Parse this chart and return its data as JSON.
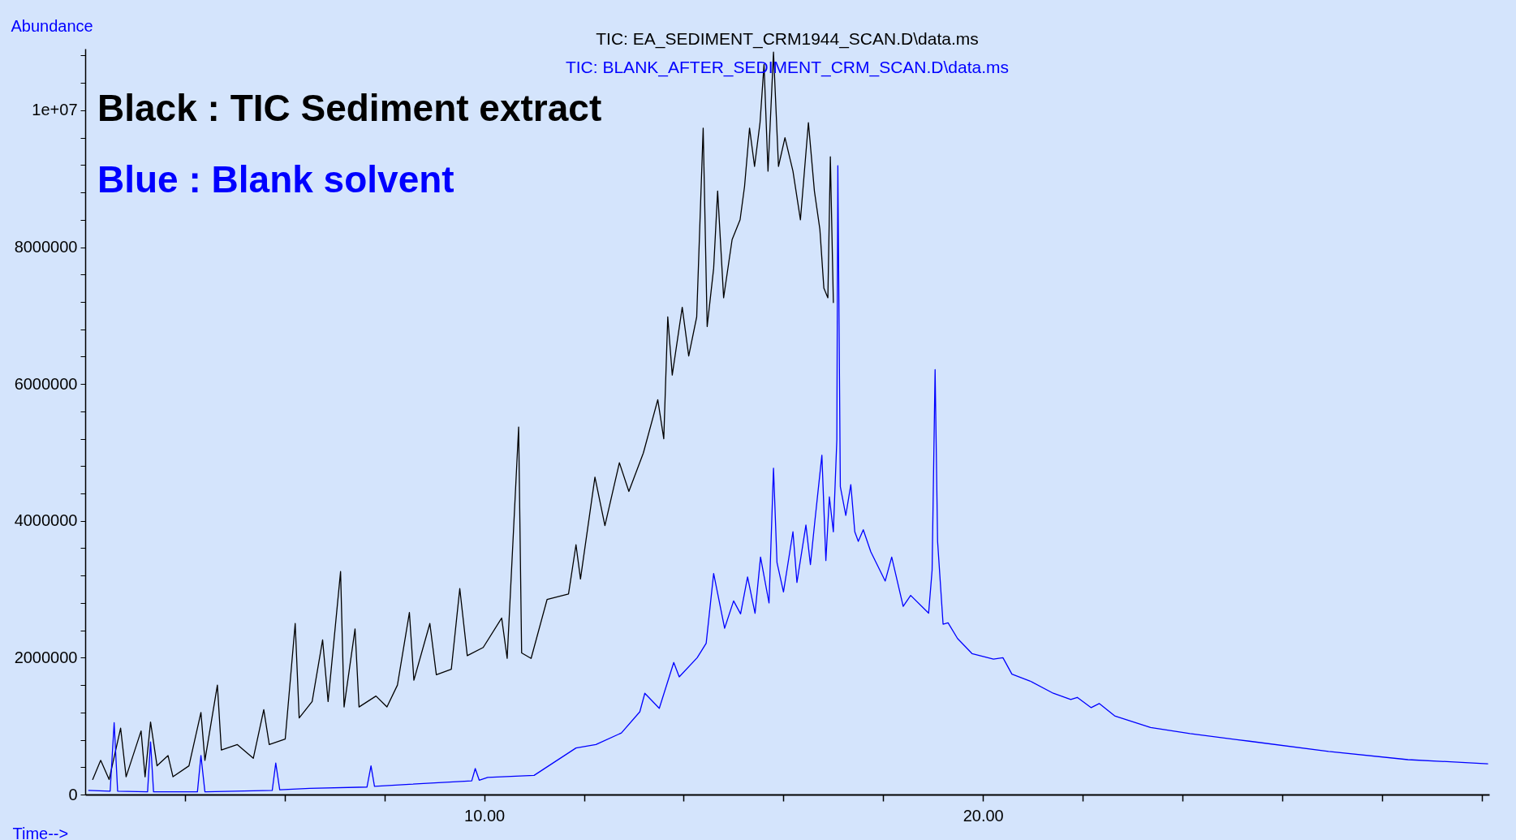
{
  "chart_data": {
    "type": "line",
    "title": "TIC: EA_SEDIMENT_CRM1944_SCAN.D\\data.ms",
    "subtitle": "TIC: BLANK_AFTER_SEDIMENT_CRM_SCAN.D\\data.ms",
    "xlabel": "Time-->",
    "ylabel": "Abundance",
    "legend": "top left",
    "grid": false,
    "xlim": [
      2.0,
      30.15
    ],
    "ylim": [
      0,
      10900000
    ],
    "xticks": [
      {
        "value": 4,
        "label": null
      },
      {
        "value": 6,
        "label": null
      },
      {
        "value": 8,
        "label": null
      },
      {
        "value": 10,
        "label": "10.00"
      },
      {
        "value": 12,
        "label": null
      },
      {
        "value": 14,
        "label": null
      },
      {
        "value": 16,
        "label": null
      },
      {
        "value": 18,
        "label": null
      },
      {
        "value": 20,
        "label": "20.00"
      },
      {
        "value": 22,
        "label": null
      },
      {
        "value": 24,
        "label": null
      },
      {
        "value": 26,
        "label": null
      },
      {
        "value": 28,
        "label": null
      },
      {
        "value": 30,
        "label": null
      }
    ],
    "yticks": [
      0,
      {
        "value": 400000,
        "label": null
      },
      {
        "value": 800000,
        "label": null
      },
      {
        "value": 1200000,
        "label": null
      },
      {
        "value": 1600000,
        "label": null
      },
      2000000,
      {
        "value": 2400000,
        "label": null
      },
      {
        "value": 2800000,
        "label": null
      },
      {
        "value": 3200000,
        "label": null
      },
      {
        "value": 3600000,
        "label": null
      },
      4000000,
      {
        "value": 4400000,
        "label": null
      },
      {
        "value": 4800000,
        "label": null
      },
      {
        "value": 5200000,
        "label": null
      },
      {
        "value": 5600000,
        "label": null
      },
      6000000,
      {
        "value": 6400000,
        "label": null
      },
      {
        "value": 6800000,
        "label": null
      },
      {
        "value": 7200000,
        "label": null
      },
      {
        "value": 7600000,
        "label": null
      },
      8000000,
      {
        "value": 8400000,
        "label": null
      },
      {
        "value": 8800000,
        "label": null
      },
      {
        "value": 9200000,
        "label": null
      },
      {
        "value": 9600000,
        "label": null
      },
      {
        "value": 10000000,
        "label": "1e+07"
      },
      {
        "value": 10400000,
        "label": null
      },
      {
        "value": 10800000,
        "label": null
      }
    ],
    "series": [
      {
        "name": "Black : TIC Sediment extract",
        "color": "#000000",
        "x": [
          2.15,
          2.31,
          2.48,
          2.71,
          2.82,
          3.12,
          3.2,
          3.31,
          3.44,
          3.66,
          3.76,
          4.08,
          4.32,
          4.4,
          4.65,
          4.73,
          5.05,
          5.37,
          5.58,
          5.69,
          6.01,
          6.21,
          6.29,
          6.55,
          6.76,
          6.87,
          7.12,
          7.19,
          7.41,
          7.49,
          7.83,
          8.05,
          8.26,
          8.5,
          8.59,
          8.91,
          9.04,
          9.34,
          9.51,
          9.66,
          9.98,
          10.35,
          10.46,
          10.69,
          10.75,
          10.94,
          11.26,
          11.69,
          11.84,
          11.93,
          12.22,
          12.42,
          12.71,
          12.9,
          13.19,
          13.48,
          13.6,
          13.68,
          13.77,
          13.97,
          14.1,
          14.26,
          14.39,
          14.47,
          14.6,
          14.68,
          14.8,
          14.97,
          15.13,
          15.22,
          15.32,
          15.42,
          15.53,
          15.61,
          15.69,
          15.8,
          15.9,
          16.03,
          16.19,
          16.34,
          16.5,
          16.62,
          16.73,
          16.81,
          16.89,
          16.94,
          17.0
        ],
        "values": [
          220000,
          500000,
          220000,
          970000,
          260000,
          930000,
          260000,
          1060000,
          420000,
          570000,
          260000,
          420000,
          1200000,
          500000,
          1600000,
          650000,
          730000,
          530000,
          1240000,
          730000,
          810000,
          2500000,
          1120000,
          1360000,
          2260000,
          1360000,
          3260000,
          1280000,
          2420000,
          1280000,
          1440000,
          1280000,
          1600000,
          2660000,
          1670000,
          2500000,
          1750000,
          1830000,
          3010000,
          2030000,
          2150000,
          2580000,
          1990000,
          5370000,
          2070000,
          1990000,
          2850000,
          2930000,
          3650000,
          3150000,
          4640000,
          3930000,
          4850000,
          4430000,
          4990000,
          5770000,
          5200000,
          6980000,
          6130000,
          7120000,
          6410000,
          6980000,
          9740000,
          6840000,
          7690000,
          8820000,
          7260000,
          8110000,
          8400000,
          8890000,
          9740000,
          9180000,
          9820000,
          10670000,
          9110000,
          10850000,
          9180000,
          9600000,
          9110000,
          8400000,
          9820000,
          8820000,
          8260000,
          7400000,
          7260000,
          9320000,
          7190000
        ]
      },
      {
        "name": "Blue   : Blank solvent",
        "color": "#0000ff",
        "x": [
          2.07,
          2.5,
          2.58,
          2.65,
          3.25,
          3.31,
          3.37,
          4.25,
          4.32,
          4.4,
          5.75,
          5.82,
          5.9,
          6.5,
          7.65,
          7.73,
          7.8,
          8.5,
          9.75,
          9.82,
          9.9,
          10.07,
          11.0,
          11.84,
          12.24,
          12.75,
          13.12,
          13.22,
          13.51,
          13.8,
          13.91,
          14.27,
          14.45,
          14.6,
          14.82,
          15.0,
          15.14,
          15.28,
          15.43,
          15.54,
          15.71,
          15.8,
          15.87,
          16.0,
          16.19,
          16.27,
          16.45,
          16.54,
          16.63,
          16.77,
          16.85,
          16.92,
          17.0,
          17.07,
          17.09,
          17.14,
          17.25,
          17.35,
          17.43,
          17.5,
          17.6,
          17.75,
          18.04,
          18.17,
          18.4,
          18.55,
          18.91,
          18.98,
          19.04,
          19.09,
          19.2,
          19.3,
          19.49,
          19.78,
          20.21,
          20.4,
          20.58,
          20.94,
          21.41,
          21.76,
          21.89,
          22.17,
          22.33,
          22.64,
          23.36,
          24.15,
          25.34,
          26.93,
          28.52,
          30.12
        ],
        "values": [
          60000,
          50000,
          1050000,
          50000,
          40000,
          770000,
          40000,
          40000,
          570000,
          40000,
          60000,
          460000,
          70000,
          90000,
          110000,
          420000,
          120000,
          150000,
          200000,
          380000,
          210000,
          250000,
          280000,
          680000,
          730000,
          900000,
          1210000,
          1480000,
          1260000,
          1930000,
          1720000,
          2000000,
          2210000,
          3230000,
          2430000,
          2830000,
          2640000,
          3180000,
          2650000,
          3470000,
          2800000,
          4770000,
          3390000,
          2960000,
          3840000,
          3100000,
          3940000,
          3360000,
          4000000,
          4960000,
          3420000,
          4350000,
          3840000,
          5190000,
          9190000,
          4500000,
          4080000,
          4530000,
          3840000,
          3700000,
          3870000,
          3550000,
          3120000,
          3470000,
          2750000,
          2910000,
          2650000,
          3280000,
          6210000,
          3700000,
          2490000,
          2510000,
          2280000,
          2060000,
          1980000,
          2000000,
          1760000,
          1660000,
          1480000,
          1390000,
          1420000,
          1270000,
          1330000,
          1150000,
          980000,
          890000,
          780000,
          630000,
          510000,
          450000
        ]
      }
    ]
  }
}
